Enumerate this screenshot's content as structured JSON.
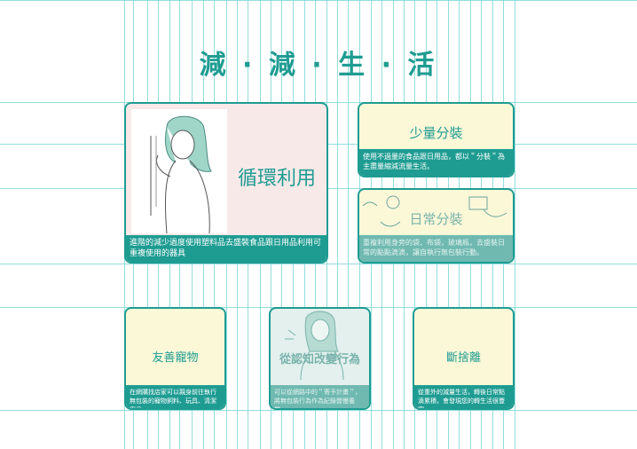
{
  "title": "減 · 減 · 生 · 活",
  "cards": {
    "recycle": {
      "heading": "循環利用",
      "caption": "進階的減少過度使用塑料品去盛裝食品跟日用品利用可重複使用的器具"
    },
    "portion": {
      "heading": "少量分裝",
      "caption": "使用不過量的食品跟日用品，都以＂分裝＂為主盡量縮減流量生活。"
    },
    "daily": {
      "heading": "日常分裝",
      "caption": "重複利用身旁的袋、布袋，玻璃瓶，去盛裝日常的點點滴滴，讓自執行無包裝行動。"
    },
    "pet": {
      "heading": "友善寵物",
      "caption": "在網購找店家可以親身前往執行無包裝的寵物飼料、玩具、清潔用品。"
    },
    "awareness": {
      "heading": "從認知改變行為",
      "caption": "可以從網路中的＂寄予計畫＂，將無包裝行為作為紀錄營慢養業。"
    },
    "declutter": {
      "heading": "斷捨離",
      "caption": "從重外的減量生活，轉後日常點滴累積，會發現您的轉生活很豐富。"
    }
  },
  "colors": {
    "accent": "#1f9c92",
    "cream": "#fbf8d8",
    "pink": "#f8e9e9"
  }
}
